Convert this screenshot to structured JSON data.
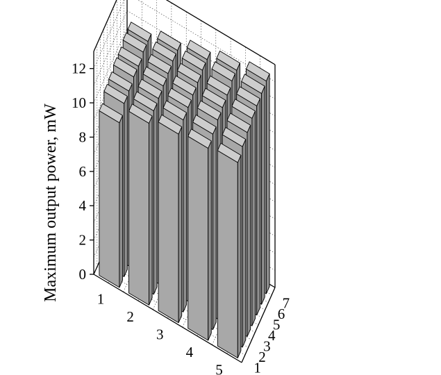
{
  "chart_data": {
    "type": "bar3d",
    "title": "",
    "ylabel": "Maximum output power, mW",
    "zlim": [
      0,
      13
    ],
    "x_ticks": [
      "1",
      "2",
      "3",
      "4",
      "5"
    ],
    "y_ticks": [
      "1",
      "2",
      "3",
      "4",
      "5",
      "6",
      "7"
    ],
    "z_ticks": [
      "0",
      "2",
      "4",
      "6",
      "8",
      "10",
      "12"
    ],
    "grid": true,
    "bar_color": "#a9a9a9",
    "values": [
      [
        9.6,
        10.1,
        10.2,
        10.4,
        10.4,
        10.6,
        10.6
      ],
      [
        10.6,
        10.7,
        10.8,
        10.9,
        11.0,
        11.1,
        11.1
      ],
      [
        11.0,
        11.2,
        11.3,
        11.4,
        11.5,
        11.6,
        11.6
      ],
      [
        11.2,
        11.4,
        11.6,
        11.7,
        11.8,
        12.0,
        12.0
      ],
      [
        11.4,
        11.7,
        11.9,
        12.1,
        12.2,
        12.3,
        12.4
      ]
    ]
  }
}
